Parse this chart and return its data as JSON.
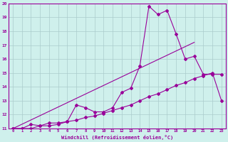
{
  "xlabel": "Windchill (Refroidissement éolien,°C)",
  "background_color": "#cff0ec",
  "grid_color": "#aacccc",
  "line_color": "#990099",
  "xlim": [
    -0.5,
    23.5
  ],
  "ylim": [
    11,
    20
  ],
  "xticks": [
    0,
    1,
    2,
    3,
    4,
    5,
    6,
    7,
    8,
    9,
    10,
    11,
    12,
    13,
    14,
    15,
    16,
    17,
    18,
    19,
    20,
    21,
    22,
    23
  ],
  "yticks": [
    11,
    12,
    13,
    14,
    15,
    16,
    17,
    18,
    19,
    20
  ],
  "line1_x": [
    0,
    1,
    2,
    3,
    4,
    5,
    6,
    7,
    8,
    9,
    10,
    11,
    12,
    13,
    14,
    15,
    16,
    17,
    18,
    19,
    20,
    21,
    22,
    23
  ],
  "line1_y": [
    11.0,
    11.0,
    11.3,
    11.2,
    11.4,
    11.4,
    11.5,
    12.7,
    12.5,
    12.2,
    12.2,
    12.5,
    13.6,
    13.9,
    15.5,
    19.8,
    19.2,
    19.5,
    17.8,
    16.0,
    16.2,
    14.9,
    14.9,
    14.9
  ],
  "line2_x": [
    0,
    1,
    2,
    3,
    4,
    5,
    6,
    7,
    8,
    9,
    10,
    11,
    12,
    13,
    14,
    15,
    16,
    17,
    18,
    19,
    20,
    21,
    22,
    23
  ],
  "line2_y": [
    11.0,
    11.0,
    11.0,
    11.2,
    11.2,
    11.3,
    11.5,
    11.6,
    11.8,
    11.9,
    12.1,
    12.3,
    12.5,
    12.7,
    13.0,
    13.3,
    13.5,
    13.8,
    14.1,
    14.3,
    14.6,
    14.8,
    15.0,
    13.0
  ],
  "line3_x": [
    0,
    20
  ],
  "line3_y": [
    11.0,
    17.2
  ]
}
